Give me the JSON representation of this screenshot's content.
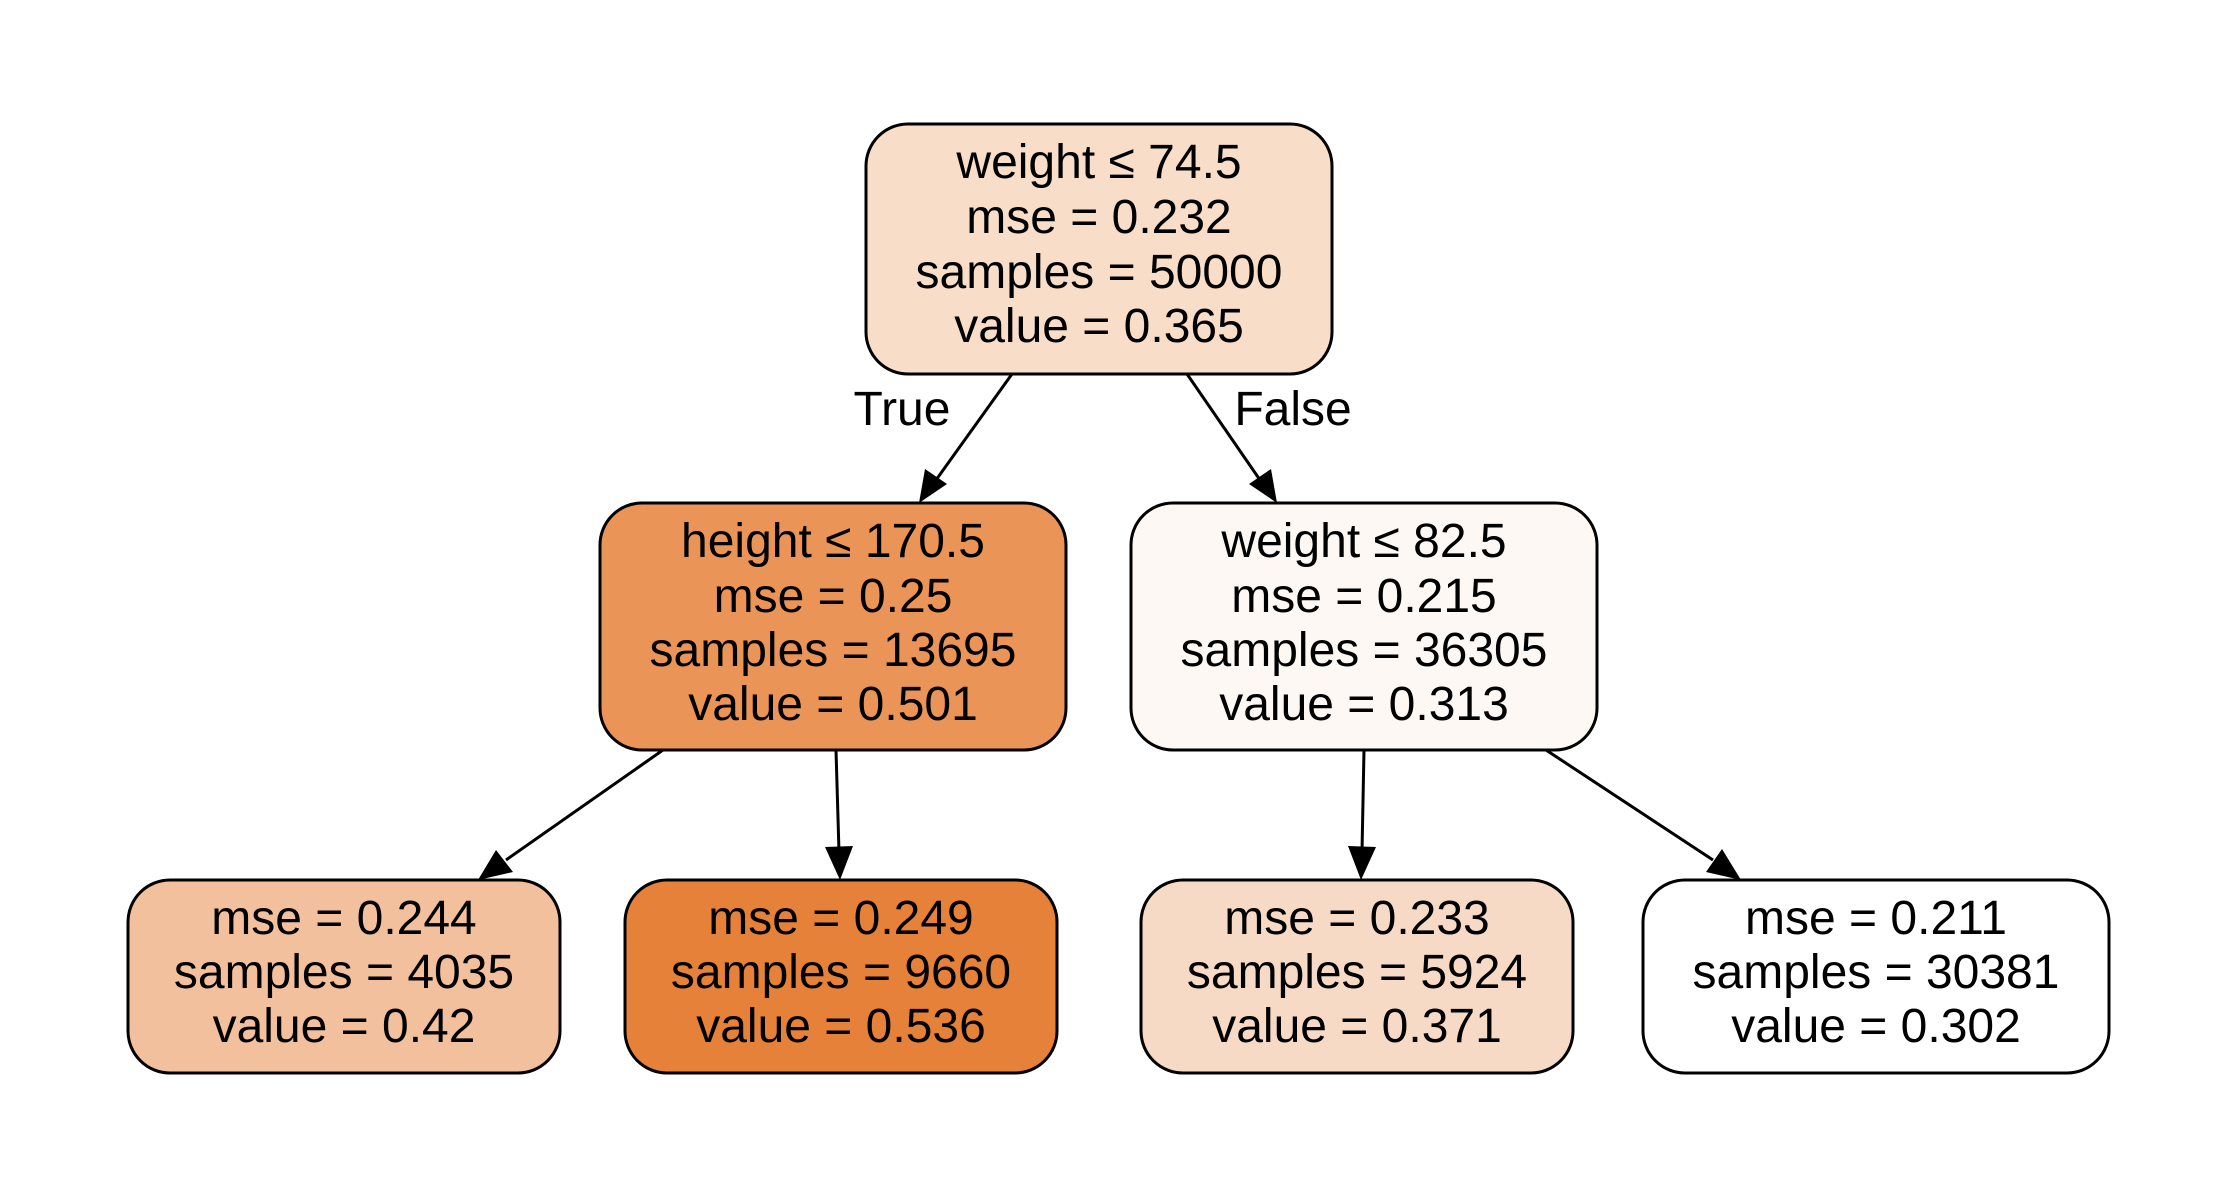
{
  "tree": {
    "nodes": [
      {
        "id": "root",
        "fill": "#f8ddc9",
        "lines": [
          "weight ≤ 74.5",
          "mse = 0.232",
          "samples = 50000",
          "value = 0.365"
        ]
      },
      {
        "id": "left",
        "fill": "#ea9458",
        "lines": [
          "height ≤ 170.5",
          "mse = 0.25",
          "samples = 13695",
          "value = 0.501"
        ]
      },
      {
        "id": "right",
        "fill": "#fef8f5",
        "lines": [
          "weight ≤ 82.5",
          "mse = 0.215",
          "samples = 36305",
          "value = 0.313"
        ]
      },
      {
        "id": "left-left",
        "fill": "#f2c09c",
        "lines": [
          "mse = 0.244",
          "samples = 4035",
          "value = 0.42"
        ]
      },
      {
        "id": "left-right",
        "fill": "#e58139",
        "lines": [
          "mse = 0.249",
          "samples = 9660",
          "value = 0.536"
        ]
      },
      {
        "id": "right-left",
        "fill": "#f7dac5",
        "lines": [
          "mse = 0.233",
          "samples = 5924",
          "value = 0.371"
        ]
      },
      {
        "id": "right-right",
        "fill": "#ffffff",
        "lines": [
          "mse = 0.211",
          "samples = 30381",
          "value = 0.302"
        ]
      }
    ],
    "edges": [
      {
        "from": "root",
        "to": "left",
        "label": "True"
      },
      {
        "from": "root",
        "to": "right",
        "label": "False"
      },
      {
        "from": "left",
        "to": "left-left",
        "label": ""
      },
      {
        "from": "left",
        "to": "left-right",
        "label": ""
      },
      {
        "from": "right",
        "to": "right-left",
        "label": ""
      },
      {
        "from": "right",
        "to": "right-right",
        "label": ""
      }
    ]
  }
}
